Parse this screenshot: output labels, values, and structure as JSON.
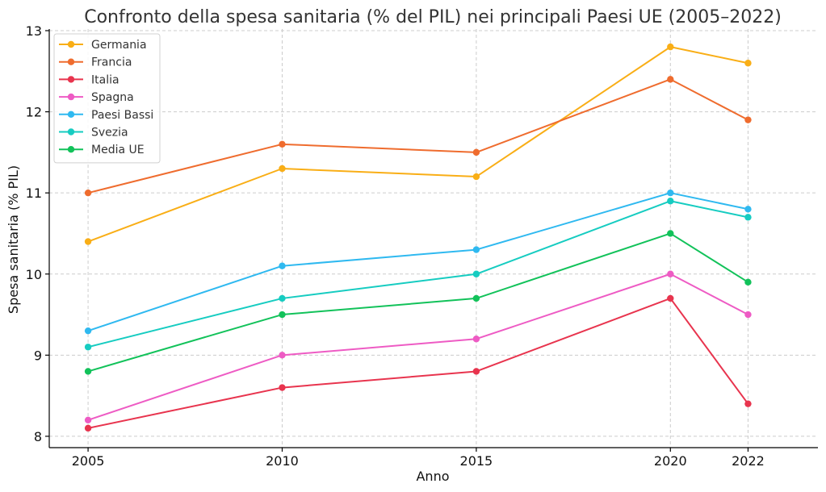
{
  "chart_data": {
    "type": "line",
    "title": "Confronto della spesa sanitaria (% del PIL) nei principali Paesi UE (2005–2022)",
    "xlabel": "Anno",
    "ylabel": "Spesa sanitaria (% PIL)",
    "x": [
      2005,
      2010,
      2015,
      2020,
      2022
    ],
    "xlim": [
      2004.0,
      2023.8
    ],
    "ylim": [
      7.86,
      13.02
    ],
    "xticks": [
      2005,
      2010,
      2015,
      2020,
      2022
    ],
    "yticks": [
      8,
      9,
      10,
      11,
      12,
      13
    ],
    "grid": true,
    "legend_position": "top-left",
    "series": [
      {
        "name": "Germania",
        "color": "#F9AE16",
        "values": [
          10.4,
          11.3,
          11.2,
          12.8,
          12.6
        ]
      },
      {
        "name": "Francia",
        "color": "#EF6C2E",
        "values": [
          11.0,
          11.6,
          11.5,
          12.4,
          11.9
        ]
      },
      {
        "name": "Italia",
        "color": "#E8344E",
        "values": [
          8.1,
          8.6,
          8.8,
          9.7,
          8.4
        ]
      },
      {
        "name": "Spagna",
        "color": "#EE5BC4",
        "values": [
          8.2,
          9.0,
          9.2,
          10.0,
          9.5
        ]
      },
      {
        "name": "Paesi Bassi",
        "color": "#2FB9F0",
        "values": [
          9.3,
          10.1,
          10.3,
          11.0,
          10.8
        ]
      },
      {
        "name": "Svezia",
        "color": "#16CCC1",
        "values": [
          9.1,
          9.7,
          10.0,
          10.9,
          10.7
        ]
      },
      {
        "name": "Media UE",
        "color": "#12C25A",
        "values": [
          8.8,
          9.5,
          9.7,
          10.5,
          9.9
        ]
      }
    ]
  }
}
